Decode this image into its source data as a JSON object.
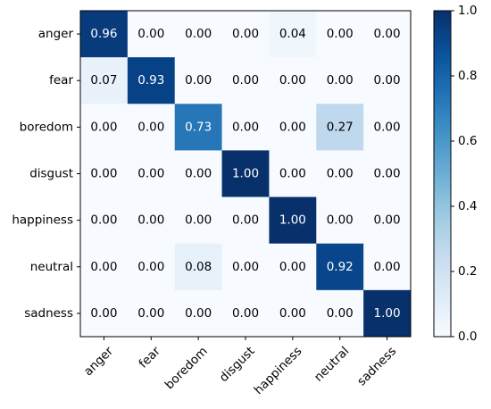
{
  "chart_data": {
    "type": "heatmap",
    "title": "",
    "xlabel": "",
    "ylabel": "",
    "row_labels": [
      "anger",
      "fear",
      "boredom",
      "disgust",
      "happiness",
      "neutral",
      "sadness"
    ],
    "col_labels": [
      "anger",
      "fear",
      "boredom",
      "disgust",
      "happiness",
      "neutral",
      "sadness"
    ],
    "values": [
      [
        0.96,
        0.0,
        0.0,
        0.0,
        0.04,
        0.0,
        0.0
      ],
      [
        0.07,
        0.93,
        0.0,
        0.0,
        0.0,
        0.0,
        0.0
      ],
      [
        0.0,
        0.0,
        0.73,
        0.0,
        0.0,
        0.27,
        0.0
      ],
      [
        0.0,
        0.0,
        0.0,
        1.0,
        0.0,
        0.0,
        0.0
      ],
      [
        0.0,
        0.0,
        0.0,
        0.0,
        1.0,
        0.0,
        0.0
      ],
      [
        0.0,
        0.0,
        0.08,
        0.0,
        0.0,
        0.92,
        0.0
      ],
      [
        0.0,
        0.0,
        0.0,
        0.0,
        0.0,
        0.0,
        1.0
      ]
    ],
    "value_format": "2 decimals",
    "colormap": "Blues",
    "vmin": 0,
    "vmax": 1,
    "colorbar": {
      "ticks": [
        0.0,
        0.2,
        0.4,
        0.6,
        0.8,
        1.0
      ],
      "tick_labels": [
        "0.0",
        "0.2",
        "0.4",
        "0.6",
        "0.8",
        "1.0"
      ]
    },
    "grid": false,
    "x_tick_rotation_deg": 45
  }
}
